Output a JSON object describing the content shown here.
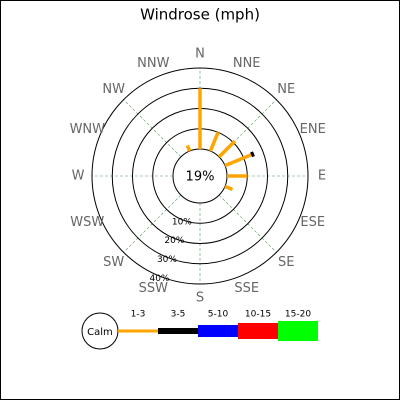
{
  "chart_data": {
    "type": "windrose",
    "title": "Windrose (mph)",
    "directions": [
      "N",
      "NNE",
      "NE",
      "ENE",
      "E",
      "ESE",
      "SE",
      "SSE",
      "S",
      "SSW",
      "SW",
      "WSW",
      "W",
      "WNW",
      "NW",
      "NNW"
    ],
    "calm": {
      "value": 19,
      "label": "19%"
    },
    "calm_label": "Calm",
    "rlim": [
      0,
      40
    ],
    "rticks": [
      {
        "value": 10,
        "label": "10%"
      },
      {
        "value": 20,
        "label": "20%"
      },
      {
        "value": 30,
        "label": "30%"
      },
      {
        "value": 40,
        "label": "40%"
      }
    ],
    "series": [
      {
        "name": "1-3",
        "color": "#ffa500",
        "values": [
          30,
          10,
          11,
          14,
          10,
          4,
          0,
          0,
          0,
          0,
          0,
          0,
          0,
          0,
          0,
          3
        ]
      },
      {
        "name": "3-5",
        "color": "#000000",
        "values": [
          0,
          0,
          0,
          1.5,
          0,
          0,
          0,
          0,
          0,
          0,
          0,
          0,
          0,
          0,
          0,
          0
        ]
      },
      {
        "name": "5-10",
        "color": "#0000ff",
        "values": [
          0,
          0,
          0,
          0,
          0,
          0,
          0,
          0,
          0,
          0,
          0,
          0,
          0,
          0,
          0,
          0
        ]
      },
      {
        "name": "10-15",
        "color": "#ff0000",
        "values": [
          0,
          0,
          0,
          0,
          0,
          0,
          0,
          0,
          0,
          0,
          0,
          0,
          0,
          0,
          0,
          0
        ]
      },
      {
        "name": "15-20",
        "color": "#00ff00",
        "values": [
          0,
          0,
          0,
          0,
          0,
          0,
          0,
          0,
          0,
          0,
          0,
          0,
          0,
          0,
          0,
          0
        ]
      }
    ]
  }
}
